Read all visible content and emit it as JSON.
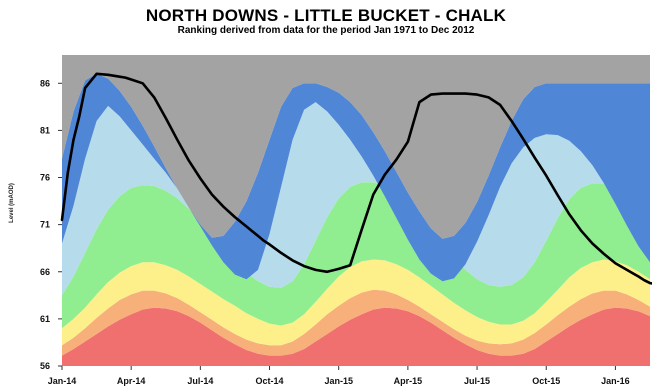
{
  "chart_data": {
    "type": "area",
    "title": "NORTH DOWNS - LITTLE BUCKET - CHALK",
    "subtitle": "Ranking derived from data for the period Jan 1971 to Dec 2012",
    "ylabel": "Level (mAOD)",
    "ylim": [
      56,
      89
    ],
    "yticks": [
      56,
      61,
      66,
      71,
      76,
      81,
      86
    ],
    "xticks": [
      "Jan-14",
      "Apr-14",
      "Jul-14",
      "Oct-14",
      "Jan-15",
      "Apr-15",
      "Jul-15",
      "Oct-15",
      "Jan-16"
    ],
    "x": [
      0,
      0.5,
      1,
      1.5,
      2,
      2.5,
      3,
      3.5,
      4,
      4.5,
      5,
      5.5,
      6,
      6.5,
      7,
      7.5,
      8,
      8.5,
      9,
      9.5,
      10,
      10.5,
      11,
      11.5,
      12,
      12.5,
      13,
      13.5,
      14,
      14.5,
      15,
      15.5,
      16,
      16.5,
      17,
      17.5,
      18,
      18.5,
      19,
      19.5,
      20,
      20.5,
      21,
      21.5,
      22,
      22.5,
      23,
      23.5,
      24,
      24.5,
      25,
      25.5
    ],
    "bands": [
      {
        "color": "#f07070",
        "upper": [
          57.1,
          57.8,
          58.6,
          59.4,
          60.2,
          60.9,
          61.5,
          62.0,
          62.2,
          62.1,
          61.8,
          61.3,
          60.6,
          59.8,
          59.0,
          58.3,
          57.7,
          57.3,
          57.1,
          57.1,
          57.3,
          57.8,
          58.6,
          59.4,
          60.2,
          60.9,
          61.5,
          62.0,
          62.2,
          62.1,
          61.8,
          61.3,
          60.6,
          59.8,
          59.0,
          58.3,
          57.7,
          57.3,
          57.1,
          57.1,
          57.3,
          57.8,
          58.6,
          59.4,
          60.2,
          60.9,
          61.5,
          62.0,
          62.2,
          62.1,
          61.8,
          61.3
        ]
      },
      {
        "color": "#f8b07a",
        "upper": [
          58.2,
          59.0,
          60.0,
          61.1,
          62.1,
          63.0,
          63.6,
          64.0,
          64.0,
          63.7,
          63.2,
          62.5,
          61.7,
          60.9,
          60.1,
          59.4,
          58.8,
          58.4,
          58.2,
          58.2,
          58.6,
          59.4,
          60.4,
          61.5,
          62.4,
          63.2,
          63.8,
          64.1,
          64.0,
          63.6,
          63.0,
          62.3,
          61.5,
          60.7,
          59.9,
          59.2,
          58.7,
          58.4,
          58.3,
          58.4,
          58.8,
          59.5,
          60.4,
          61.4,
          62.3,
          63.1,
          63.7,
          64.0,
          64.0,
          63.6,
          63.0,
          62.3
        ]
      },
      {
        "color": "#fdf08a",
        "upper": [
          60.0,
          61.0,
          62.2,
          63.6,
          64.9,
          65.9,
          66.6,
          67.0,
          67.0,
          66.7,
          66.2,
          65.5,
          64.7,
          63.9,
          63.1,
          62.4,
          61.6,
          61.0,
          60.5,
          60.3,
          60.6,
          61.5,
          62.8,
          64.2,
          65.5,
          66.5,
          67.1,
          67.3,
          67.2,
          66.8,
          66.2,
          65.4,
          64.5,
          63.6,
          62.7,
          61.9,
          61.2,
          60.7,
          60.4,
          60.4,
          60.8,
          61.6,
          62.8,
          64.1,
          65.4,
          66.4,
          67.0,
          67.3,
          67.1,
          66.7,
          66.0,
          65.2
        ]
      },
      {
        "color": "#90ee90",
        "upper": [
          63.5,
          65.5,
          68.0,
          70.5,
          72.6,
          74.0,
          74.9,
          75.2,
          75.1,
          74.6,
          73.8,
          72.7,
          71.3,
          69.8,
          68.3,
          67.0,
          65.9,
          65.0,
          64.4,
          64.3,
          65.0,
          66.8,
          69.3,
          71.8,
          73.8,
          75.0,
          75.5,
          75.5,
          75.1,
          74.4,
          73.4,
          72.1,
          70.6,
          69.0,
          67.5,
          66.2,
          65.2,
          64.6,
          64.4,
          64.6,
          65.4,
          67.0,
          69.3,
          71.7,
          73.7,
          74.9,
          75.4,
          75.4,
          75.0,
          74.2,
          73.1,
          71.8
        ]
      },
      {
        "color": "#b6dcec",
        "upper": [
          69.0,
          73.0,
          78.0,
          82.0,
          83.6,
          82.5,
          81.0,
          79.5,
          78.0,
          76.5,
          74.8,
          72.8,
          70.8,
          68.8,
          67.0,
          65.7,
          65.2,
          66.2,
          70.0,
          75.0,
          80.0,
          83.2,
          84.0,
          83.0,
          81.6,
          80.0,
          78.2,
          76.2,
          74.0,
          71.7,
          69.4,
          67.3,
          65.8,
          65.0,
          65.3,
          66.8,
          69.2,
          72.0,
          75.0,
          77.5,
          79.2,
          80.2,
          80.6,
          80.5,
          79.9,
          78.8,
          77.3,
          75.4,
          73.2,
          70.9,
          68.7,
          67.0
        ]
      },
      {
        "color": "#4f86d6",
        "upper": [
          78.0,
          83.0,
          86.3,
          87.0,
          86.5,
          85.2,
          83.5,
          81.5,
          79.3,
          77.0,
          74.8,
          72.8,
          71.0,
          69.6,
          69.8,
          71.3,
          73.5,
          76.5,
          80.0,
          83.5,
          85.5,
          86.0,
          86.0,
          85.6,
          85.0,
          84.0,
          82.6,
          80.8,
          78.8,
          76.6,
          74.4,
          72.4,
          70.6,
          69.5,
          69.8,
          71.2,
          73.4,
          76.2,
          79.2,
          82.0,
          84.3,
          85.6,
          86.0,
          86.0,
          86.0,
          86.0,
          86.0,
          86.0,
          86.0,
          86.0,
          86.0,
          86.0
        ]
      },
      {
        "color": "#a3a3a3",
        "upper": [
          89,
          89,
          89,
          89,
          89,
          89,
          89,
          89,
          89,
          89,
          89,
          89,
          89,
          89,
          89,
          89,
          89,
          89,
          89,
          89,
          89,
          89,
          89,
          89,
          89,
          89,
          89,
          89,
          89,
          89,
          89,
          89,
          89,
          89,
          89,
          89,
          89,
          89,
          89,
          89,
          89,
          89,
          89,
          89,
          89,
          89,
          89,
          89,
          89,
          89,
          89,
          89
        ]
      }
    ],
    "series": [
      {
        "color": "#000000",
        "x": [
          0,
          0.5,
          1,
          1.5,
          2,
          3,
          4,
          5,
          5.5,
          6,
          7,
          8,
          9,
          10,
          11,
          12,
          13,
          14,
          15,
          16,
          16.5,
          17,
          17.5,
          18,
          19,
          20,
          21,
          22,
          23,
          24,
          25,
          26,
          27,
          28,
          29,
          30,
          31,
          32,
          33,
          34,
          35,
          36,
          37,
          38,
          39,
          40,
          41,
          42,
          43,
          44,
          45,
          46,
          47,
          48,
          49,
          50,
          50.5,
          51,
          51.5,
          52,
          52.5,
          53,
          53.5,
          54
        ],
        "y": [
          71.5,
          76.5,
          80.0,
          82.5,
          85.5,
          87.0,
          86.9,
          86.7,
          86.6,
          86.4,
          86.0,
          84.5,
          82.3,
          80.0,
          77.8,
          75.9,
          74.2,
          72.9,
          71.8,
          70.8,
          70.3,
          69.8,
          69.3,
          68.9,
          68.0,
          67.2,
          66.6,
          66.2,
          66.0,
          66.3,
          66.7,
          70.5,
          74.2,
          76.3,
          77.9,
          79.8,
          84.0,
          84.8,
          84.9,
          84.9,
          84.9,
          84.8,
          84.5,
          83.7,
          82.0,
          80.1,
          78.1,
          76.2,
          74.1,
          72.1,
          70.4,
          69.0,
          67.9,
          66.9,
          66.2,
          65.5,
          65.1,
          64.8,
          64.7,
          64.6,
          64.5,
          64.5,
          64.6,
          64.7
        ]
      }
    ]
  }
}
